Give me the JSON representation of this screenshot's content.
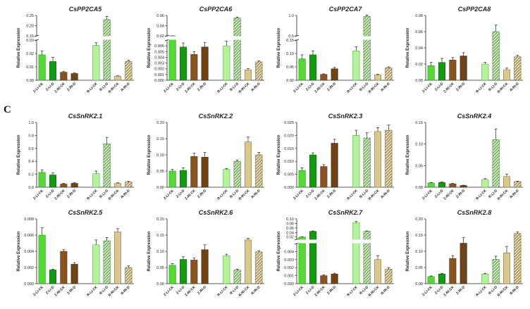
{
  "panel_label": "C",
  "styles": {
    "Z-LI-CK": {
      "fill": "#55d835",
      "stroke": "#1f8a12",
      "pattern": "solid"
    },
    "Z-LI-D": {
      "fill": "#139a10",
      "stroke": "#0a5a08",
      "pattern": "solid"
    },
    "Z-RI-CK": {
      "fill": "#8a5420",
      "stroke": "#4e2e0f",
      "pattern": "solid"
    },
    "Z-RI-D": {
      "fill": "#6f4416",
      "stroke": "#3e240a",
      "pattern": "solid"
    },
    "R-LI-CK": {
      "fill": "#b4f39a",
      "stroke": "#3e9a2a",
      "pattern": "solid"
    },
    "R-LI-D": {
      "fill": "#7ecf55",
      "stroke": "#2f6e1c",
      "pattern": "hatch"
    },
    "R-RI-CK": {
      "fill": "#d8c88e",
      "stroke": "#7a6a3a",
      "pattern": "solid"
    },
    "R-RI-D": {
      "fill": "#b99a55",
      "stroke": "#5e4a1e",
      "pattern": "hatch"
    }
  },
  "chart_data": [
    {
      "type": "bar",
      "title": "CsPP2CA5",
      "ylabel": "Relative Expression",
      "categories": [
        "Z-LI-CK",
        "Z-LI-D",
        "Z-RI-CK",
        "Z-RI-D",
        "R-LI-CK",
        "R-LI-D",
        "R-RI-CK",
        "R-RI-D"
      ],
      "values": [
        0.019,
        0.014,
        0.006,
        0.005,
        0.026,
        0.23,
        0.003,
        0.014
      ],
      "errors": [
        0.003,
        0.003,
        0.0005,
        0.0005,
        0.002,
        0.015,
        0.0003,
        0.001
      ],
      "ybreak": {
        "low_max": 0.03,
        "low_ticks": [
          0,
          0.01,
          0.02,
          0.03
        ],
        "high_min": 0.15,
        "high_max": 0.25,
        "high_ticks": [
          0.15,
          0.2,
          0.25
        ]
      },
      "tick_labels": {
        "0": "0.00",
        "0.01": "0.01",
        "0.02": "0.02",
        "0.03": "0.03",
        "0.15": "0.15",
        "0.2": "0.20",
        "0.25": "0.25"
      }
    },
    {
      "type": "bar",
      "title": "CsPP2CA6",
      "ylabel": "Relative Expression",
      "categories": [
        "Z-LI-CK",
        "Z-LI-D",
        "Z-RI-CK",
        "Z-RI-D",
        "R-LI-CK",
        "R-LI-D",
        "R-RI-CK",
        "R-RI-D"
      ],
      "values": [
        0.0075,
        0.0058,
        0.0045,
        0.0058,
        0.006,
        0.055,
        0.0018,
        0.0032
      ],
      "errors": [
        0.0005,
        0.0007,
        0.0005,
        0.0008,
        0.0008,
        0.002,
        0.0002,
        0.0002
      ],
      "ybreak": {
        "low_max": 0.007,
        "low_ticks": [
          0,
          0.001,
          0.002,
          0.003,
          0.004,
          0.005,
          0.006
        ],
        "high_min": 0.02,
        "high_max": 0.06,
        "high_ticks": [
          0.02,
          0.04,
          0.06
        ]
      },
      "tick_labels": {
        "0": "0.000",
        "0.001": "0.001",
        "0.002": "0.002",
        "0.003": "0.003",
        "0.004": "0.004",
        "0.005": "0.005",
        "0.006": "0.006",
        "0.02": "0.02",
        "0.04": "0.04",
        "0.06": "0.06"
      }
    },
    {
      "type": "bar",
      "title": "CsPP2CA7",
      "ylabel": "Relative Expression",
      "categories": [
        "Z-LI-CK",
        "Z-LI-D",
        "Z-RI-CK",
        "Z-RI-D",
        "R-LI-CK",
        "R-LI-D",
        "R-RI-CK",
        "R-RI-D"
      ],
      "values": [
        0.08,
        0.095,
        0.022,
        0.043,
        0.11,
        0.98,
        0.02,
        0.047
      ],
      "errors": [
        0.015,
        0.015,
        0.002,
        0.005,
        0.015,
        0.03,
        0.002,
        0.003
      ],
      "ybreak": {
        "low_max": 0.15,
        "low_ticks": [
          0,
          0.05,
          0.1,
          0.15
        ],
        "high_min": 0.5,
        "high_max": 1.0,
        "high_ticks": [
          0.5,
          1.0
        ]
      },
      "tick_labels": {
        "0": "0.00",
        "0.05": "0.05",
        "0.1": "0.10",
        "0.15": "0.15",
        "0.5": "0.5",
        "1": "1.0"
      }
    },
    {
      "type": "bar",
      "title": "CsPP2CA8",
      "ylabel": "Relative Expression",
      "categories": [
        "Z-LI-CK",
        "Z-LI-D",
        "Z-RI-CK",
        "Z-RI-D",
        "R-LI-CK",
        "R-LI-D",
        "R-RI-CK",
        "R-RI-D"
      ],
      "values": [
        0.018,
        0.022,
        0.025,
        0.03,
        0.02,
        0.06,
        0.013,
        0.029
      ],
      "errors": [
        0.004,
        0.005,
        0.003,
        0.004,
        0.002,
        0.008,
        0.002,
        0.002
      ],
      "ylim": [
        0,
        0.08
      ],
      "ticks": [
        0,
        0.02,
        0.04,
        0.06,
        0.08
      ],
      "tick_labels": {
        "0": "0.00",
        "0.02": "0.02",
        "0.04": "0.04",
        "0.06": "0.06",
        "0.08": "0.08"
      }
    },
    {
      "type": "bar",
      "title": "CsSnRK2.1",
      "ylabel": "Relative Expression",
      "categories": [
        "Z-LI-CK",
        "Z-LI-D",
        "Z-RI-CK",
        "Z-RI-D",
        "R-LI-CK",
        "R-LI-D",
        "R-RI-CK",
        "R-RI-D"
      ],
      "values": [
        0.23,
        0.19,
        0.05,
        0.06,
        0.21,
        0.67,
        0.06,
        0.08
      ],
      "errors": [
        0.04,
        0.03,
        0.01,
        0.01,
        0.04,
        0.1,
        0.01,
        0.01
      ],
      "ylim": [
        0,
        1.0
      ],
      "ticks": [
        0,
        0.2,
        0.4,
        0.6,
        0.8,
        1.0
      ],
      "tick_labels": {
        "0": "0.0",
        "0.2": "0.2",
        "0.4": "0.4",
        "0.6": "0.6",
        "0.8": "0.8",
        "1": "1.0"
      }
    },
    {
      "type": "bar",
      "title": "CsSnRK2.2",
      "ylabel": "Relative Expression",
      "categories": [
        "Z-LI-CK",
        "Z-LI-D",
        "Z-RI-CK",
        "Z-RI-D",
        "R-LI-CK",
        "R-LI-D",
        "R-RI-CK",
        "R-RI-D"
      ],
      "values": [
        0.05,
        0.052,
        0.095,
        0.093,
        0.055,
        0.08,
        0.14,
        0.1
      ],
      "errors": [
        0.005,
        0.008,
        0.01,
        0.015,
        0.003,
        0.004,
        0.015,
        0.008
      ],
      "ylim": [
        0,
        0.2
      ],
      "ticks": [
        0,
        0.05,
        0.1,
        0.15,
        0.2
      ],
      "tick_labels": {
        "0": "0.00",
        "0.05": "0.05",
        "0.1": "0.10",
        "0.15": "0.15",
        "0.2": "0.20"
      }
    },
    {
      "type": "bar",
      "title": "CsSnRK2.3",
      "ylabel": "Relative Expression",
      "categories": [
        "Z-LI-CK",
        "Z-LI-D",
        "Z-RI-CK",
        "Z-RI-D",
        "R-LI-CK",
        "R-LI-D",
        "R-RI-CK",
        "R-RI-D"
      ],
      "values": [
        0.0065,
        0.0125,
        0.008,
        0.017,
        0.02,
        0.019,
        0.0215,
        0.022
      ],
      "errors": [
        0.001,
        0.0008,
        0.0007,
        0.0015,
        0.002,
        0.002,
        0.0015,
        0.002
      ],
      "ylim": [
        0,
        0.025
      ],
      "ticks": [
        0,
        0.005,
        0.01,
        0.015,
        0.02,
        0.025
      ],
      "tick_labels": {
        "0": "0.000",
        "0.005": "0.005",
        "0.01": "0.010",
        "0.015": "0.015",
        "0.02": "0.020",
        "0.025": "0.025"
      }
    },
    {
      "type": "bar",
      "title": "CsSnRK2.4",
      "ylabel": "Relative Expression",
      "categories": [
        "Z-LI-CK",
        "Z-LI-D",
        "Z-RI-CK",
        "Z-RI-D",
        "R-LI-CK",
        "R-LI-D",
        "R-RI-CK",
        "R-RI-D"
      ],
      "values": [
        0.01,
        0.011,
        0.008,
        0.004,
        0.018,
        0.11,
        0.025,
        0.013
      ],
      "errors": [
        0.001,
        0.001,
        0.001,
        0.0008,
        0.002,
        0.025,
        0.005,
        0.001
      ],
      "ylim": [
        0,
        0.15
      ],
      "ticks": [
        0,
        0.05,
        0.1,
        0.15
      ],
      "tick_labels": {
        "0": "0.00",
        "0.05": "0.05",
        "0.1": "0.10",
        "0.15": "0.15"
      }
    },
    {
      "type": "bar",
      "title": "CsSnRK2.5",
      "ylabel": "Relative Expression",
      "categories": [
        "Z-LI-CK",
        "Z-LI-D",
        "Z-RI-CK",
        "Z-RI-D",
        "R-LI-CK",
        "R-LI-D",
        "R-RI-CK",
        "R-RI-D"
      ],
      "values": [
        0.006,
        0.0017,
        0.004,
        0.0024,
        0.0048,
        0.0053,
        0.0064,
        0.002
      ],
      "errors": [
        0.0009,
        0.0001,
        0.0002,
        0.0002,
        0.0006,
        0.0004,
        0.0004,
        0.0002
      ],
      "ylim": [
        0,
        0.008
      ],
      "ticks": [
        0,
        0.002,
        0.004,
        0.006,
        0.008
      ],
      "tick_labels": {
        "0": "0.000",
        "0.002": "0.002",
        "0.004": "0.004",
        "0.006": "0.006",
        "0.008": "0.008"
      }
    },
    {
      "type": "bar",
      "title": "CsSnRK2.6",
      "ylabel": "Relative Expression",
      "categories": [
        "Z-LI-CK",
        "Z-LI-D",
        "Z-RI-CK",
        "Z-RI-D",
        "R-LI-CK",
        "R-LI-D",
        "R-RI-CK",
        "R-RI-D"
      ],
      "values": [
        0.057,
        0.075,
        0.073,
        0.105,
        0.086,
        0.042,
        0.135,
        0.098
      ],
      "errors": [
        0.005,
        0.008,
        0.006,
        0.015,
        0.005,
        0.003,
        0.005,
        0.004
      ],
      "ylim": [
        0,
        0.2
      ],
      "ticks": [
        0,
        0.05,
        0.1,
        0.15,
        0.2
      ],
      "tick_labels": {
        "0": "0.00",
        "0.05": "0.05",
        "0.1": "0.10",
        "0.15": "0.15",
        "0.2": "0.20"
      }
    },
    {
      "type": "bar",
      "title": "CsSnRK2.7",
      "ylabel": "Relative Expression",
      "categories": [
        "Z-LI-CK",
        "Z-LI-D",
        "Z-RI-CK",
        "Z-RI-D",
        "R-LI-CK",
        "R-LI-D",
        "R-RI-CK",
        "R-RI-D"
      ],
      "values": [
        0.02,
        0.045,
        0.001,
        0.0012,
        0.083,
        0.045,
        0.003,
        0.0018
      ],
      "errors": [
        0.001,
        0.002,
        0.0001,
        0.0001,
        0.006,
        0.002,
        0.0005,
        0.0002
      ],
      "ybreak": {
        "low_max": 0.005,
        "low_ticks": [
          0,
          0.001,
          0.002,
          0.003,
          0.004
        ],
        "high_min": 0.01,
        "high_max": 0.1,
        "high_ticks": [
          0.02,
          0.04,
          0.06,
          0.08,
          0.1
        ]
      },
      "tick_labels": {
        "0": "0.000",
        "0.001": "0.001",
        "0.002": "0.002",
        "0.003": "0.003",
        "0.004": "0.004",
        "0.02": "0.02",
        "0.04": "0.04",
        "0.06": "0.06",
        "0.08": "0.08",
        "0.1": "0.10"
      }
    },
    {
      "type": "bar",
      "title": "CsSnRK2.8",
      "ylabel": "Relative Expression",
      "categories": [
        "Z-LI-CK",
        "Z-LI-D",
        "Z-RI-CK",
        "Z-RI-D",
        "R-LI-CK",
        "R-LI-D",
        "R-RI-CK",
        "R-RI-D"
      ],
      "values": [
        0.022,
        0.03,
        0.078,
        0.125,
        0.03,
        0.075,
        0.095,
        0.155
      ],
      "errors": [
        0.002,
        0.002,
        0.008,
        0.018,
        0.002,
        0.01,
        0.02,
        0.005
      ],
      "ylim": [
        0,
        0.2
      ],
      "ticks": [
        0,
        0.05,
        0.1,
        0.15,
        0.2
      ],
      "tick_labels": {
        "0": "0.00",
        "0.05": "0.05",
        "0.1": "0.10",
        "0.15": "0.15",
        "0.2": "0.20"
      }
    }
  ]
}
